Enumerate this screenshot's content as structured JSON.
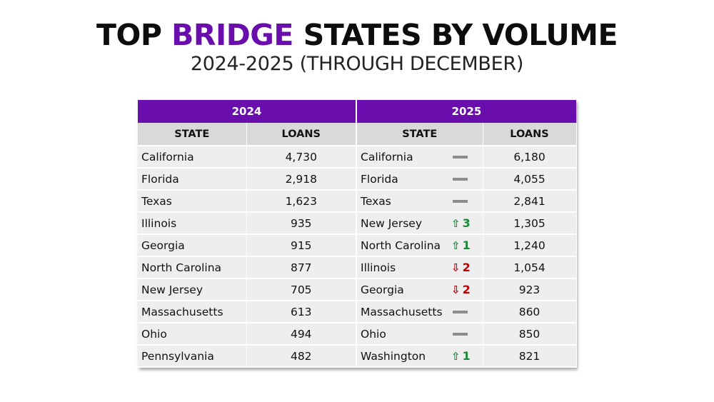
{
  "title": {
    "part1": "TOP ",
    "accent": "BRIDGE",
    "part2": " STATES BY VOLUME",
    "accent_color": "#6a0dad"
  },
  "subtitle": "2024-2025 (THROUGH DECEMBER)",
  "table": {
    "year_2024": "2024",
    "year_2025": "2025",
    "header_state": "STATE",
    "header_loans": "LOANS",
    "header_color": "#6a0dad",
    "rows": [
      {
        "state24": "California",
        "loans24": "4,730",
        "state25": "California",
        "change_dir": "flat",
        "change_val": "",
        "loans25": "6,180"
      },
      {
        "state24": "Florida",
        "loans24": "2,918",
        "state25": "Florida",
        "change_dir": "flat",
        "change_val": "",
        "loans25": "4,055"
      },
      {
        "state24": "Texas",
        "loans24": "1,623",
        "state25": "Texas",
        "change_dir": "flat",
        "change_val": "",
        "loans25": "2,841"
      },
      {
        "state24": "Illinois",
        "loans24": "935",
        "state25": "New Jersey",
        "change_dir": "up",
        "change_val": "3",
        "loans25": "1,305"
      },
      {
        "state24": "Georgia",
        "loans24": "915",
        "state25": "North Carolina",
        "change_dir": "up",
        "change_val": "1",
        "loans25": "1,240"
      },
      {
        "state24": "North Carolina",
        "loans24": "877",
        "state25": "Illinois",
        "change_dir": "down",
        "change_val": "2",
        "loans25": "1,054"
      },
      {
        "state24": "New Jersey",
        "loans24": "705",
        "state25": "Georgia",
        "change_dir": "down",
        "change_val": "2",
        "loans25": "923"
      },
      {
        "state24": "Massachusetts",
        "loans24": "613",
        "state25": "Massachusetts",
        "change_dir": "flat",
        "change_val": "",
        "loans25": "860"
      },
      {
        "state24": "Ohio",
        "loans24": "494",
        "state25": "Ohio",
        "change_dir": "flat",
        "change_val": "",
        "loans25": "850"
      },
      {
        "state24": "Pennsylvania",
        "loans24": "482",
        "state25": "Washington",
        "change_dir": "up",
        "change_val": "1",
        "loans25": "821"
      }
    ]
  }
}
